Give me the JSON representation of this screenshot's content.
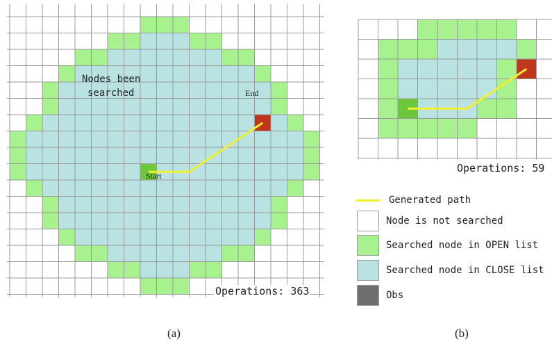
{
  "colors": {
    "grid_line": "#9a9a9a",
    "not_searched": "#ffffff",
    "open": "#a7f28f",
    "close": "#b9e3e3",
    "obs": "#6e6e6e",
    "start": "#6cc83a",
    "end": "#c0361a",
    "path": "#f5f02d"
  },
  "panel_a": {
    "nodes_label_line1": "Nodes been",
    "nodes_label_line2": "searched",
    "start_label": "Start",
    "end_label": "End",
    "operations": "Operations: 363",
    "caption": "(a)",
    "grid": {
      "cols": 19,
      "rows": 17,
      "open_rows": [
        [
          8,
          10
        ],
        [
          6,
          12
        ],
        [
          4,
          14
        ],
        [
          3,
          15
        ],
        [
          2,
          16
        ],
        [
          2,
          16
        ],
        [
          1,
          17
        ],
        [
          0,
          18
        ],
        [
          0,
          18
        ],
        [
          0,
          18
        ],
        [
          1,
          17
        ],
        [
          2,
          16
        ],
        [
          2,
          16
        ],
        [
          3,
          15
        ],
        [
          4,
          14
        ],
        [
          6,
          12
        ],
        [
          8,
          10
        ]
      ],
      "close_rows": [
        null,
        [
          8,
          10
        ],
        [
          6,
          12
        ],
        [
          4,
          14
        ],
        [
          3,
          15
        ],
        [
          3,
          15
        ],
        [
          2,
          16
        ],
        [
          1,
          17
        ],
        [
          1,
          17
        ],
        [
          1,
          17
        ],
        [
          2,
          16
        ],
        [
          3,
          15
        ],
        [
          3,
          15
        ],
        [
          4,
          14
        ],
        [
          6,
          12
        ],
        [
          8,
          10
        ],
        null
      ],
      "start_cell": [
        8,
        9
      ],
      "end_cell": [
        15,
        6
      ],
      "path_cells": [
        [
          8.5,
          9.5
        ],
        [
          11,
          9.5
        ],
        [
          15.5,
          6.5
        ]
      ]
    }
  },
  "panel_b": {
    "operations": "Operations: 59",
    "caption": "(b)",
    "grid": {
      "cols": 10,
      "rows": 7,
      "open_rows": [
        [
          3,
          7
        ],
        [
          1,
          8
        ],
        [
          1,
          8
        ],
        [
          1,
          7
        ],
        [
          1,
          7
        ],
        [
          1,
          5
        ],
        null
      ],
      "close_rows": [
        null,
        [
          4,
          7
        ],
        [
          2,
          6
        ],
        [
          2,
          6
        ],
        [
          2,
          5
        ],
        null,
        null
      ],
      "start_cell": [
        2,
        4
      ],
      "end_cell": [
        8,
        2
      ],
      "path_cells": [
        [
          2.5,
          4.5
        ],
        [
          5.5,
          4.5
        ],
        [
          8.5,
          2.5
        ]
      ]
    }
  },
  "legend": {
    "path": "Generated path",
    "not_searched": "Node is not searched",
    "open": "Searched node in OPEN list",
    "close": "Searched node in CLOSE list",
    "obs": "Obs"
  }
}
